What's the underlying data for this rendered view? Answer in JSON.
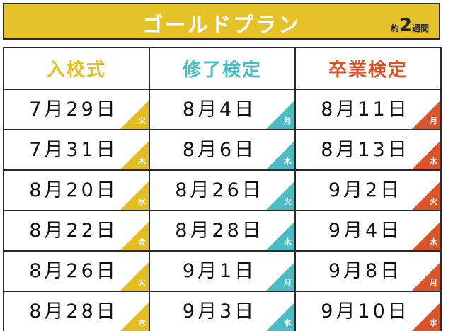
{
  "header": {
    "title": "ゴールドプラン",
    "duration_prefix": "約",
    "duration_number": "2",
    "duration_suffix": "週間"
  },
  "colors": {
    "header_bg": "#e4c228",
    "col1": "#e4be1e",
    "col2": "#4cbcc4",
    "col3": "#d9532b"
  },
  "columns": [
    {
      "label": "入校式",
      "color": "#e4be1e"
    },
    {
      "label": "修了検定",
      "color": "#4cbcc4"
    },
    {
      "label": "卒業検定",
      "color": "#d9532b"
    }
  ],
  "rows": [
    [
      {
        "date": "7月29日",
        "day": "火"
      },
      {
        "date": "8月4日",
        "day": "月"
      },
      {
        "date": "8月11日",
        "day": "月"
      }
    ],
    [
      {
        "date": "7月31日",
        "day": "木"
      },
      {
        "date": "8月6日",
        "day": "水"
      },
      {
        "date": "8月13日",
        "day": "水"
      }
    ],
    [
      {
        "date": "8月20日",
        "day": "水"
      },
      {
        "date": "8月26日",
        "day": "火"
      },
      {
        "date": "9月2日",
        "day": "火"
      }
    ],
    [
      {
        "date": "8月22日",
        "day": "金"
      },
      {
        "date": "8月28日",
        "day": "木"
      },
      {
        "date": "9月4日",
        "day": "木"
      }
    ],
    [
      {
        "date": "8月26日",
        "day": "火"
      },
      {
        "date": "9月1日",
        "day": "月"
      },
      {
        "date": "9月8日",
        "day": "月"
      }
    ],
    [
      {
        "date": "8月28日",
        "day": "木"
      },
      {
        "date": "9月3日",
        "day": "水"
      },
      {
        "date": "9月10日",
        "day": "水"
      }
    ]
  ]
}
